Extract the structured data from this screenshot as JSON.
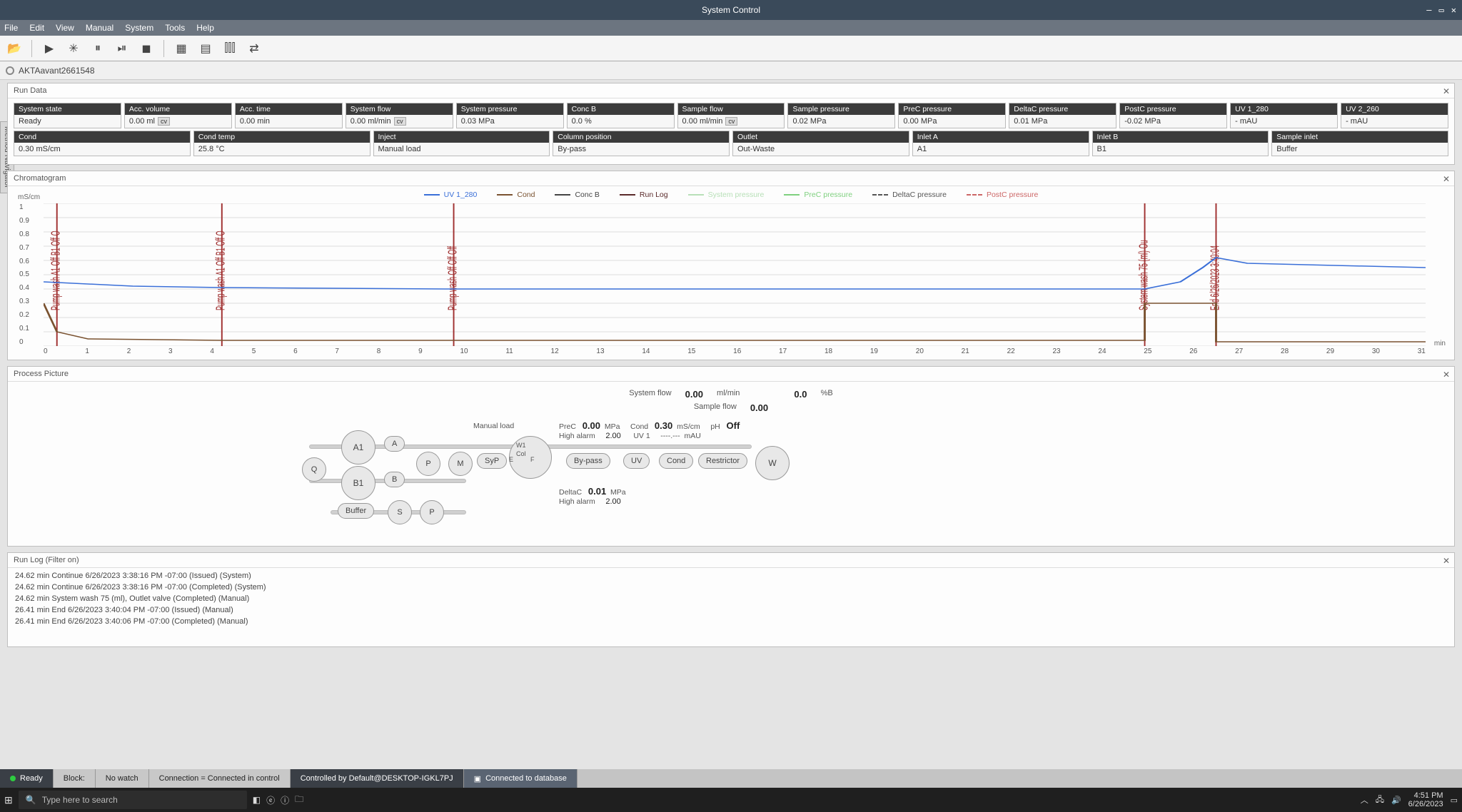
{
  "app": {
    "title": "System Control",
    "instrument": "AKTAavant2661548"
  },
  "menubar": [
    "File",
    "Edit",
    "View",
    "Manual",
    "System",
    "Tools",
    "Help"
  ],
  "sidebar_tab": "Method Navigator",
  "run_data": {
    "title": "Run Data",
    "row1": [
      {
        "label": "System state",
        "value": "Ready",
        "cv": false
      },
      {
        "label": "Acc. volume",
        "value": "0.00 ml",
        "cv": true
      },
      {
        "label": "Acc. time",
        "value": "0.00 min",
        "cv": false
      },
      {
        "label": "System flow",
        "value": "0.00 ml/min",
        "cv": true
      },
      {
        "label": "System pressure",
        "value": "0.03 MPa",
        "cv": false
      },
      {
        "label": "Conc B",
        "value": "0.0 %",
        "cv": false
      },
      {
        "label": "Sample flow",
        "value": "0.00 ml/min",
        "cv": true
      },
      {
        "label": "Sample pressure",
        "value": "0.02 MPa",
        "cv": false
      },
      {
        "label": "PreC pressure",
        "value": "0.00 MPa",
        "cv": false
      },
      {
        "label": "DeltaC pressure",
        "value": "0.01 MPa",
        "cv": false
      },
      {
        "label": "PostC pressure",
        "value": "-0.02 MPa",
        "cv": false
      },
      {
        "label": "UV 1_280",
        "value": "- mAU",
        "cv": false
      },
      {
        "label": "UV 2_260",
        "value": "- mAU",
        "cv": false
      }
    ],
    "row2": [
      {
        "label": "Cond",
        "value": "0.30 mS/cm"
      },
      {
        "label": "Cond temp",
        "value": "25.8 °C"
      },
      {
        "label": "Inject",
        "value": "Manual load"
      },
      {
        "label": "Column position",
        "value": "By-pass"
      },
      {
        "label": "Outlet",
        "value": "Out-Waste"
      },
      {
        "label": "Inlet A",
        "value": "A1"
      },
      {
        "label": "Inlet B",
        "value": "B1"
      },
      {
        "label": "Sample inlet",
        "value": "Buffer"
      }
    ]
  },
  "chromatogram": {
    "title": "Chromatogram",
    "y_unit": "mS/cm",
    "x_unit": "min",
    "ylim": [
      0,
      1.0
    ],
    "yticks": [
      "0",
      "0.1",
      "0.2",
      "0.3",
      "0.4",
      "0.5",
      "0.6",
      "0.7",
      "0.8",
      "0.9",
      "1"
    ],
    "xlim": [
      0,
      31
    ],
    "xticks": [
      "0",
      "1",
      "2",
      "3",
      "4",
      "5",
      "6",
      "7",
      "8",
      "9",
      "10",
      "11",
      "12",
      "13",
      "14",
      "15",
      "16",
      "17",
      "18",
      "19",
      "20",
      "21",
      "22",
      "23",
      "24",
      "25",
      "26",
      "27",
      "28",
      "29",
      "30",
      "31"
    ],
    "legend": [
      {
        "name": "UV 1_280",
        "color": "#3a6fd8",
        "dash": false
      },
      {
        "name": "Cond",
        "color": "#7a5230",
        "dash": false
      },
      {
        "name": "Conc B",
        "color": "#444444",
        "dash": false
      },
      {
        "name": "Run Log",
        "color": "#5a2a2a",
        "dash": false
      },
      {
        "name": "System pressure",
        "color": "#b8e0b8",
        "dash": false
      },
      {
        "name": "PreC pressure",
        "color": "#7fd07f",
        "dash": false
      },
      {
        "name": "DeltaC pressure",
        "color": "#555555",
        "dash": true
      },
      {
        "name": "PostC pressure",
        "color": "#cc6666",
        "dash": true
      }
    ],
    "uv_series_color": "#3a6fd8",
    "cond_series_color": "#7a5230",
    "grid_color": "#dddddd",
    "events": [
      {
        "x": 0.3,
        "label": "Pump wash A1 Off B1 Off O",
        "color": "#a03030"
      },
      {
        "x": 4.0,
        "label": "Pump wash A1 Off B1 Off O",
        "color": "#a03030"
      },
      {
        "x": 9.2,
        "label": "Pump wash Off Off Off",
        "color": "#a03030"
      },
      {
        "x": 24.7,
        "label": "System wash 75 (ml) Ou",
        "color": "#a03030"
      },
      {
        "x": 26.3,
        "label": "End 6/26/2023 3:40:04",
        "color": "#a03030"
      }
    ]
  },
  "process": {
    "title": "Process Picture",
    "sys_flow_label": "System flow",
    "sys_flow_val": "0.00",
    "sys_flow_unit": "ml/min",
    "concb_val": "0.0",
    "concb_unit": "%B",
    "sample_flow_label": "Sample flow",
    "sample_flow_val": "0.00",
    "manual_load": "Manual load",
    "prec_label": "PreC",
    "prec_val": "0.00",
    "prec_unit": "MPa",
    "high_alarm_label": "High alarm",
    "high_alarm_val": "2.00",
    "cond_label": "Cond",
    "cond_val": "0.30",
    "cond_unit": "mS/cm",
    "ph_label": "pH",
    "ph_val": "Off",
    "uv1_label": "UV 1",
    "uv1_val": "----.---",
    "uv1_unit": "mAU",
    "deltac_label": "DeltaC",
    "deltac_val": "0.01",
    "deltac_unit": "MPa",
    "deltac_alarm_label": "High alarm",
    "deltac_alarm_val": "2.00",
    "nodes": {
      "q": "Q",
      "a1": "A1",
      "b1": "B1",
      "a": "A",
      "b": "B",
      "p": "P",
      "m": "M",
      "syp": "SyP",
      "buffer": "Buffer",
      "s": "S",
      "p2": "P",
      "bypass": "By-pass",
      "uv": "UV",
      "condn": "Cond",
      "restrictor": "Restrictor",
      "w": "W",
      "col": "Col",
      "f": "F",
      "e": "E",
      "w1": "W1"
    }
  },
  "runlog": {
    "title": "Run Log (Filter on)",
    "lines": [
      "24.62 min Continue 6/26/2023 3:38:16 PM -07:00 (Issued) (System)",
      "24.62 min Continue 6/26/2023 3:38:16 PM -07:00 (Completed) (System)",
      "24.62 min System wash 75 (ml), Outlet valve (Completed) (Manual)",
      "26.41 min End 6/26/2023 3:40:04 PM -07:00 (Issued) (Manual)",
      "26.41 min End 6/26/2023 3:40:06 PM -07:00 (Completed) (Manual)"
    ]
  },
  "status": {
    "ready": "Ready",
    "block": "Block:",
    "watch": "No watch",
    "conn": "Connection = Connected in control",
    "controlled": "Controlled by Default@DESKTOP-IGKL7PJ",
    "db": "Connected to database"
  },
  "taskbar": {
    "search_placeholder": "Type here to search",
    "time": "4:51 PM",
    "date": "6/26/2023"
  }
}
